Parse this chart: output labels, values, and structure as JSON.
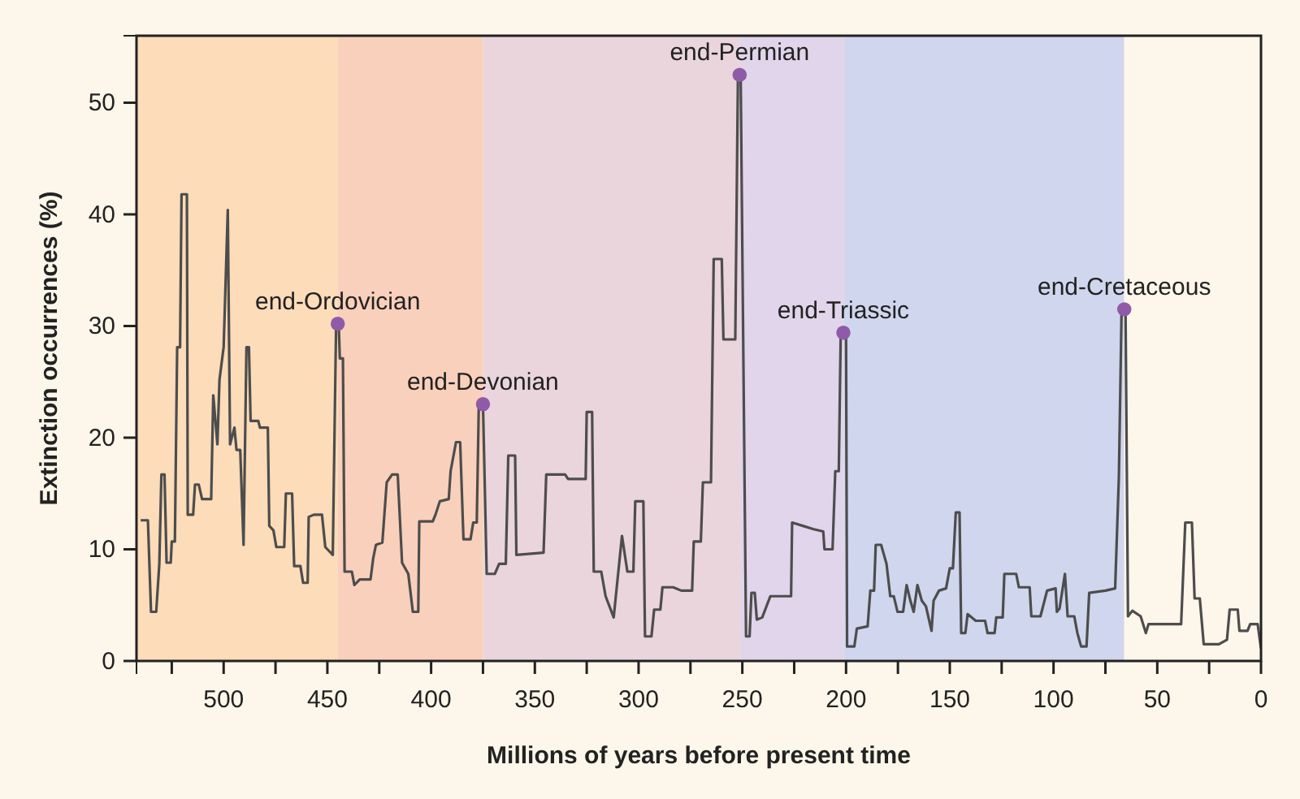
{
  "chart_data": {
    "type": "line",
    "xlabel": "Millions of years before present time",
    "ylabel": "Extinction occurrences (%)",
    "xlim": [
      542,
      0
    ],
    "ylim": [
      0,
      56
    ],
    "xticks": [
      {
        "value": 525,
        "label": null
      },
      500,
      {
        "value": 475,
        "label": null
      },
      450,
      {
        "value": 425,
        "label": null
      },
      400,
      {
        "value": 375,
        "label": null
      },
      350,
      {
        "value": 325,
        "label": null
      },
      300,
      {
        "value": 275,
        "label": null
      },
      250,
      {
        "value": 225,
        "label": null
      },
      200,
      {
        "value": 175,
        "label": null
      },
      150,
      {
        "value": 125,
        "label": null
      },
      100,
      {
        "value": 75,
        "label": null
      },
      50,
      {
        "value": 25,
        "label": null
      },
      0
    ],
    "yticks": [
      0,
      10,
      20,
      30,
      40,
      50
    ],
    "bands": [
      {
        "axis": "x",
        "from": 542,
        "to": 445,
        "color": "#fcdcb9"
      },
      {
        "axis": "x",
        "from": 445,
        "to": 375,
        "color": "#f9d0bb"
      },
      {
        "axis": "x",
        "from": 375,
        "to": 251,
        "color": "#ead5dc"
      },
      {
        "axis": "x",
        "from": 251,
        "to": 201,
        "color": "#e0d5ea"
      },
      {
        "axis": "x",
        "from": 201,
        "to": 66,
        "color": "#d0d6ed"
      }
    ],
    "annotations": [
      {
        "text": "end-Ordovician",
        "x": 445,
        "y": 30.2
      },
      {
        "text": "end-Devonian",
        "x": 375,
        "y": 23
      },
      {
        "text": "end-Permian",
        "x": 251.3,
        "y": 52.5
      },
      {
        "text": "end-Triassic",
        "x": 201.3,
        "y": 29.4
      },
      {
        "text": "end-Cretaceous",
        "x": 65.9,
        "y": 31.5
      }
    ],
    "series": [
      {
        "color": "#4d4d4d",
        "marker": "none",
        "x": [
          540,
          536.5,
          535,
          532.5,
          531,
          530,
          528.5,
          527.5,
          525.5,
          525,
          523.5,
          522.4,
          521,
          520.3,
          517.7,
          517.3,
          514.7,
          513.8,
          512,
          510.4,
          506,
          505,
          503,
          502,
          500,
          498,
          496.9,
          494.8,
          493.8,
          492,
          490.4,
          489,
          487.8,
          487,
          483.3,
          482.5,
          478.7,
          478,
          476,
          474.6,
          470.8,
          470,
          467,
          466,
          463,
          461.7,
          459.5,
          459,
          456.5,
          452.6,
          451,
          447.4,
          445.8,
          444.5,
          444,
          442.5,
          441.7,
          438.2,
          437,
          434.4,
          429.2,
          427.9,
          426.6,
          423.5,
          421.4,
          418.8,
          416.1,
          414,
          411,
          408.8,
          406.2,
          405.7,
          399.2,
          397.9,
          395.8,
          391.5,
          390.6,
          388,
          386,
          384.4,
          381,
          379.7,
          378,
          377,
          375,
          373.2,
          369.3,
          367.2,
          364,
          362.8,
          359.5,
          358.9,
          345.8,
          344.5,
          335.4,
          334,
          325.5,
          325,
          322.4,
          321.6,
          318,
          315.9,
          312,
          308,
          305.4,
          302.5,
          301.6,
          297.7,
          296.9,
          293.8,
          292.5,
          289.5,
          288.5,
          283.3,
          279.4,
          274.2,
          273.4,
          270,
          269,
          265.1,
          263.8,
          259.9,
          259.1,
          253.4,
          252.1,
          250.8,
          248.2,
          246.5,
          245.6,
          244,
          243,
          240.4,
          236.5,
          226.5,
          226,
          220.8,
          215.6,
          211,
          210.4,
          206.5,
          205.2,
          203.5,
          202.6,
          200,
          199.5,
          196,
          194.8,
          189.6,
          188.3,
          186.5,
          185.7,
          183.1,
          180.5,
          178.7,
          177,
          175.2,
          172.5,
          170.8,
          169,
          167.4,
          165.6,
          163.5,
          161.5,
          158.8,
          157.8,
          155.2,
          151.8,
          150,
          148.5,
          147.1,
          145.3,
          144.5,
          142.5,
          141.4,
          137.5,
          133,
          131.8,
          128.4,
          127.6,
          124.5,
          123.7,
          118,
          116.7,
          111.5,
          110.7,
          106.3,
          103.1,
          99,
          98.4,
          97.1,
          94.5,
          93.2,
          90,
          88.5,
          86.7,
          84.1,
          82.8,
          75,
          70.3,
          68.5,
          67.2,
          65.3,
          64.1,
          62,
          58,
          55.5,
          54.2,
          38.5,
          36.5,
          33.3,
          32,
          29.5,
          27.6,
          20.3,
          16.4,
          15.1,
          11.2,
          10.4,
          6.5,
          5.2,
          1.6,
          0
        ],
        "values": [
          12.6,
          12.6,
          4.4,
          4.4,
          8.7,
          16.7,
          16.7,
          8.8,
          8.8,
          10.7,
          10.7,
          28.1,
          28.1,
          41.8,
          41.8,
          13.1,
          13.1,
          15.8,
          15.8,
          14.5,
          14.5,
          23.8,
          19.4,
          25.2,
          28.1,
          40.4,
          19.4,
          20.9,
          18.9,
          18.9,
          10.4,
          28.1,
          28.1,
          21.5,
          21.5,
          20.9,
          20.9,
          12.1,
          11.7,
          10.2,
          10.2,
          15,
          15,
          8.5,
          8.5,
          7,
          7,
          12.9,
          13.1,
          13.1,
          10.2,
          9.5,
          30,
          30,
          27.1,
          27.1,
          8,
          8,
          6.8,
          7.3,
          7.3,
          9.2,
          10.4,
          10.6,
          16,
          16.7,
          16.7,
          8.8,
          7.8,
          4.4,
          4.4,
          12.5,
          12.5,
          13.1,
          14.3,
          14.5,
          17,
          19.6,
          19.6,
          10.9,
          10.9,
          12.4,
          12.4,
          23,
          23,
          7.8,
          7.8,
          8.7,
          8.7,
          18.4,
          18.4,
          9.5,
          9.7,
          16.7,
          16.7,
          16.3,
          16.3,
          22.3,
          22.3,
          8,
          8,
          5.8,
          3.9,
          11.2,
          8,
          8,
          14.3,
          14.3,
          2.2,
          2.2,
          4.6,
          4.6,
          6.6,
          6.6,
          6.3,
          6.3,
          10.7,
          10.7,
          16,
          16,
          36,
          36,
          28.8,
          28.8,
          52.5,
          52.5,
          2.2,
          2.2,
          6.1,
          6.1,
          3.7,
          3.9,
          5.8,
          5.8,
          12.4,
          12.1,
          11.8,
          11.6,
          10,
          10,
          17,
          17,
          29,
          29,
          1.3,
          1.3,
          2.9,
          3.1,
          6.3,
          6.3,
          10.4,
          10.4,
          8.7,
          5.8,
          5.8,
          4.4,
          4.4,
          6.8,
          5.4,
          4.4,
          6.8,
          5.4,
          4.9,
          2.7,
          5.4,
          6.3,
          6.5,
          8.3,
          8.3,
          13.3,
          13.3,
          2.5,
          2.5,
          4.2,
          3.6,
          3.6,
          2.5,
          2.5,
          3.9,
          3.9,
          7.8,
          7.8,
          6.6,
          6.6,
          4,
          4,
          6.3,
          6.5,
          4.4,
          4.7,
          7.8,
          4,
          4,
          2.5,
          1.3,
          1.3,
          6.1,
          6.3,
          6.5,
          16.5,
          31.4,
          31.4,
          4,
          4.5,
          4,
          2.5,
          3.3,
          3.3,
          12.4,
          12.4,
          5.6,
          5.6,
          1.5,
          1.5,
          1.9,
          4.6,
          4.6,
          2.7,
          2.7,
          3.3,
          3.3,
          1.1
        ]
      },
      {
        "type": "scatter",
        "color": "#8f5aa8",
        "marker": "circle",
        "x": [
          445,
          375,
          251.3,
          201.3,
          65.9
        ],
        "values": [
          30.2,
          23,
          52.5,
          29.4,
          31.5
        ]
      }
    ]
  }
}
